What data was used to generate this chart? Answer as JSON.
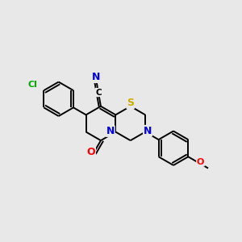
{
  "background_color": "#e8e8e8",
  "figsize": [
    3.0,
    3.0
  ],
  "dpi": 100,
  "atom_colors": {
    "C": "#000000",
    "N": "#0000ee",
    "O": "#ff0000",
    "S": "#ccaa00",
    "Cl": "#00aa00"
  },
  "bond_color": "#000000",
  "bond_lw": 1.4,
  "font_size": 8.5,
  "bl": 0.072
}
